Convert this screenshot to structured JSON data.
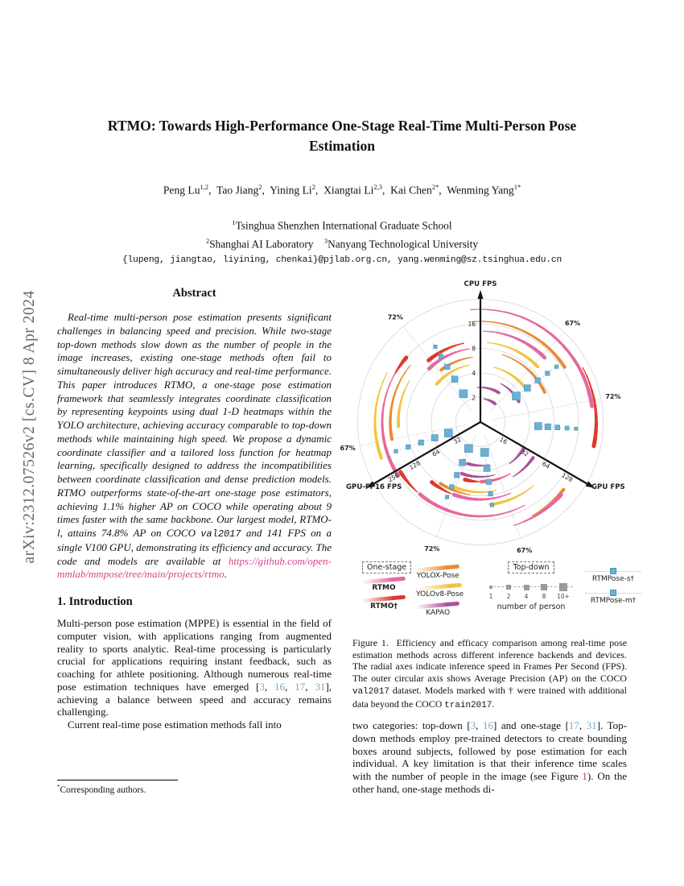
{
  "sidebar": {
    "arxiv_label": "arXiv:2312.07526v2  [cs.CV]  8 Apr 2024"
  },
  "header": {
    "title": "RTMO: Towards High-Performance One-Stage Real-Time Multi-Person Pose Estimation",
    "authors_runs": [
      {
        "t": "Peng Lu",
        "s": ""
      },
      {
        "t": "1,2",
        "s": "sup"
      },
      {
        "t": ",  Tao Jiang",
        "s": ""
      },
      {
        "t": "2",
        "s": "sup"
      },
      {
        "t": ",  Yining Li",
        "s": ""
      },
      {
        "t": "2",
        "s": "sup"
      },
      {
        "t": ",  Xiangtai Li",
        "s": ""
      },
      {
        "t": "2,3",
        "s": "sup"
      },
      {
        "t": ",  Kai Chen",
        "s": ""
      },
      {
        "t": "2*",
        "s": "sup"
      },
      {
        "t": ",  Wenming Yang",
        "s": ""
      },
      {
        "t": "1*",
        "s": "sup"
      }
    ],
    "affil1_runs": [
      {
        "t": "1",
        "s": "sup"
      },
      {
        "t": "Tsinghua Shenzhen International Graduate School",
        "s": ""
      }
    ],
    "affil2_runs": [
      {
        "t": "2",
        "s": "sup"
      },
      {
        "t": "Shanghai AI Laboratory",
        "s": ""
      },
      {
        "t": "    ",
        "s": "gap"
      },
      {
        "t": "3",
        "s": "sup"
      },
      {
        "t": "Nanyang Technological University",
        "s": ""
      }
    ],
    "emails": "{lupeng, jiangtao, liyining, chenkai}@pjlab.org.cn, yang.wenming@sz.tsinghua.edu.cn"
  },
  "abstract": {
    "heading": "Abstract",
    "runs": [
      {
        "t": "Real-time multi-person pose estimation presents significant challenges in balancing speed and precision. While two-stage top-down methods slow down as the number of people in the image increases, existing one-stage methods often fail to simultaneously deliver high accuracy and real-time performance. This paper introduces RTMO, a one-stage pose estimation framework that seamlessly integrates coordinate classification by representing keypoints using dual 1-D heatmaps within the YOLO architecture, achieving accuracy comparable to top-down methods while maintaining high speed. We propose a dynamic coordinate classifier and a tailored loss function for heatmap learning, specifically designed to address the incompatibilities between coordinate classification and dense prediction models. RTMO outperforms state-of-the-art one-stage pose estimators, achieving 1.1% higher AP on COCO while operating about 9 times faster with the same backbone. Our largest model, RTMO-l, attains 74.8% AP on COCO ",
        "s": ""
      },
      {
        "t": "val2017",
        "s": "mono"
      },
      {
        "t": " and 141 FPS on a single V100 GPU, demonstrating its efficiency and accuracy. The code and models are available at ",
        "s": ""
      },
      {
        "t": "https://github.com/open-mmlab/mmpose/tree/main/projects/rtmo",
        "s": "link"
      },
      {
        "t": ".",
        "s": ""
      }
    ]
  },
  "intro": {
    "heading": "1. Introduction",
    "para1_runs": [
      {
        "t": "Multi-person pose estimation (MPPE) is essential in the field of computer vision, with applications ranging from augmented reality to sports analytic. Real-time processing is particularly crucial for applications requiring instant feedback, such as coaching for athlete positioning. Although numerous real-time pose estimation techniques have emerged [",
        "s": ""
      },
      {
        "t": "3",
        "s": "cite"
      },
      {
        "t": ", ",
        "s": ""
      },
      {
        "t": "16",
        "s": "cite"
      },
      {
        "t": ", ",
        "s": ""
      },
      {
        "t": "17",
        "s": "cite"
      },
      {
        "t": ", ",
        "s": ""
      },
      {
        "t": "31",
        "s": "cite"
      },
      {
        "t": "], achieving a balance between speed and accuracy remains challenging.",
        "s": ""
      }
    ],
    "para2": "Current real-time pose estimation methods fall into"
  },
  "footnote": {
    "marker": "*",
    "text": "Corresponding authors."
  },
  "figure": {
    "caption_runs": [
      {
        "t": "Figure 1.  Efficiency and efficacy comparison among real-time pose estimation methods across different inference backends and devices. The radial axes indicate inference speed in Frames Per Second (FPS). The outer circular axis shows Average Precision (AP) on the COCO ",
        "s": ""
      },
      {
        "t": "val2017",
        "s": "mono"
      },
      {
        "t": " dataset. Models marked with † were trained with additional data beyond the COCO ",
        "s": ""
      },
      {
        "t": "train2017",
        "s": "mono"
      },
      {
        "t": ".",
        "s": ""
      }
    ]
  },
  "right_column": {
    "para_runs": [
      {
        "t": "two categories: top-down [",
        "s": ""
      },
      {
        "t": "3",
        "s": "cite"
      },
      {
        "t": ", ",
        "s": ""
      },
      {
        "t": "16",
        "s": "cite"
      },
      {
        "t": "] and one-stage [",
        "s": ""
      },
      {
        "t": "17",
        "s": "cite"
      },
      {
        "t": ", ",
        "s": ""
      },
      {
        "t": "31",
        "s": "cite"
      },
      {
        "t": "]. Top-down methods employ pre-trained detectors to create bounding boxes around subjects, followed by pose estimation for each individual. A key limitation is that their inference time scales with the number of people in the image (see Figure ",
        "s": ""
      },
      {
        "t": "1",
        "s": "fig"
      },
      {
        "t": "). On the other hand, one-stage methods di-",
        "s": ""
      }
    ]
  },
  "chart_data": {
    "type": "polar_comparison",
    "description_title": "Efficiency and efficacy comparison (FPS on radial axes, AP on outer circular axis)",
    "axes": [
      {
        "label": "CPU FPS",
        "angle_deg": 90,
        "ticks": [
          2,
          4,
          8,
          16
        ]
      },
      {
        "label": "GPU FPS",
        "angle_deg": -30,
        "ticks": [
          16,
          32,
          64,
          128
        ]
      },
      {
        "label": "GPU-FP16 FPS",
        "angle_deg": 210,
        "ticks": [
          32,
          64,
          128,
          256
        ]
      }
    ],
    "ap_labels": [
      {
        "text": "72%",
        "angle_deg": 129
      },
      {
        "text": "67%",
        "angle_deg": 47
      },
      {
        "text": "72%",
        "angle_deg": 11
      },
      {
        "text": "67%",
        "angle_deg": 191
      },
      {
        "text": "72%",
        "angle_deg": 249
      },
      {
        "text": "67%",
        "angle_deg": 289
      }
    ],
    "series": [
      {
        "name": "RTMO",
        "color": "#e7679f"
      },
      {
        "name": "RTMO†",
        "color": "#dc3a2c"
      },
      {
        "name": "YOLOX-Pose",
        "color": "#ea8a33"
      },
      {
        "name": "YOLOv8-Pose",
        "color": "#f2c33e"
      },
      {
        "name": "KAPAO",
        "color": "#a9529c"
      },
      {
        "name": "RTMPose-s†",
        "color": "#6ab0d2"
      },
      {
        "name": "RTMPose-m†",
        "color": "#6ab0d2"
      }
    ],
    "arcs": [
      [
        "RTMO",
        140,
        95,
        8
      ],
      [
        "RTMO†",
        144,
        28,
        -12
      ],
      [
        "YOLOX-Pose",
        125,
        95,
        33
      ],
      [
        "RTMO",
        113,
        88,
        45
      ],
      [
        "YOLOv8-Pose",
        99,
        85,
        44
      ],
      [
        "YOLOX-Pose",
        88,
        72,
        25
      ],
      [
        "YOLOv8-Pose",
        70,
        76,
        36
      ],
      [
        "KAPAO",
        54,
        62,
        28
      ],
      [
        "KAPAO",
        43,
        95,
        58
      ],
      [
        "KAPAO",
        29,
        82,
        52
      ],
      [
        "RTMO†",
        100,
        102,
        130
      ],
      [
        "RTMO",
        92,
        99,
        134
      ],
      [
        "YOLOX-Pose",
        81,
        97,
        127
      ],
      [
        "YOLOv8-Pose",
        72,
        101,
        139
      ],
      [
        "RTMO†",
        122,
        152,
        139
      ],
      [
        "RTMO",
        122,
        150,
        213
      ],
      [
        "YOLOv8-Pose",
        131,
        152,
        200
      ],
      [
        "YOLOX-Pose",
        112,
        141,
        191
      ],
      [
        "YOLOv8-Pose",
        102,
        150,
        183
      ],
      [
        "RTMO",
        117,
        298,
        230
      ],
      [
        "RTMO†",
        117,
        228,
        212
      ],
      [
        "RTMO",
        96,
        293,
        250
      ],
      [
        "RTMO†",
        96,
        248,
        231
      ],
      [
        "RTMO",
        74,
        300,
        271
      ],
      [
        "RTMO†",
        74,
        269,
        255
      ],
      [
        "YOLOv8-Pose",
        87,
        283,
        247
      ],
      [
        "YOLOv8-Pose",
        103,
        310,
        277
      ],
      [
        "YOLOX-Pose",
        91,
        262,
        237
      ],
      [
        "YOLOX-Pose",
        133,
        299,
        321
      ],
      [
        "RTMO",
        135,
        288,
        318
      ],
      [
        "KAPAO",
        68,
        285,
        250
      ],
      [
        "KAPAO",
        54,
        281,
        253
      ],
      [
        "KAPAO",
        63,
        305,
        329
      ],
      [
        "KAPAO",
        79,
        301,
        326
      ]
    ],
    "marker_chains": [
      {
        "angle_deg": 121,
        "radii": [
          41,
          62,
          80,
          95,
          109
        ],
        "sizes": [
          10,
          8,
          6.5,
          5.5,
          4.5
        ]
      },
      {
        "angle_deg": 36,
        "radii": [
          55,
          72,
          88,
          103,
          117
        ],
        "sizes": [
          10,
          8,
          6.5,
          5.5,
          4.5
        ]
      },
      {
        "angle_deg": 356,
        "radii": [
          72,
          84,
          96,
          108,
          119
        ],
        "sizes": [
          9,
          7.5,
          6,
          5,
          4
        ]
      },
      {
        "angle_deg": 278,
        "radii": [
          38,
          58,
          75,
          90,
          104
        ],
        "sizes": [
          10,
          8,
          6.5,
          5.5,
          4.5
        ]
      },
      {
        "angle_deg": 246,
        "radii": [
          36,
          55,
          72,
          88,
          102
        ],
        "sizes": [
          10,
          8,
          6.5,
          5.5,
          4.5
        ]
      },
      {
        "angle_deg": 199,
        "radii": [
          42,
          60,
          78,
          95,
          111
        ],
        "sizes": [
          10,
          8,
          6.5,
          5.5,
          4.5
        ]
      }
    ],
    "person_counts": [
      "1",
      "2",
      "4",
      "8",
      "10+"
    ]
  },
  "legend": {
    "one_stage_label": "One-stage",
    "top_down_label": "Top-down",
    "col1": [
      "RTMO",
      "RTMO†"
    ],
    "col2": [
      "YOLOX-Pose",
      "YOLOv8-Pose",
      "KAPAO"
    ],
    "person_scale_label": "number of person",
    "topdown_series": [
      "RTMPose-s†",
      "RTMPose-m†"
    ]
  }
}
